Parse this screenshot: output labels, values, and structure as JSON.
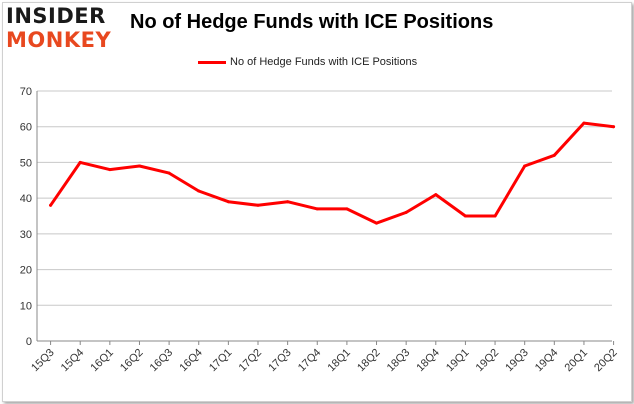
{
  "logo": {
    "line1": "INSIDER",
    "line2": "MONKEY"
  },
  "colors": {
    "series": "#ff0000",
    "grid": "#c8c8c8",
    "axis": "#888888",
    "logo_accent": "#e8481f"
  },
  "chart_data": {
    "type": "line",
    "title": "No of Hedge Funds with ICE Positions",
    "xlabel": "",
    "ylabel": "",
    "ylim": [
      0,
      70
    ],
    "yticks": [
      0,
      10,
      20,
      30,
      40,
      50,
      60,
      70
    ],
    "grid": true,
    "legend": "top-center",
    "categories": [
      "15Q3",
      "15Q4",
      "16Q1",
      "16Q2",
      "16Q3",
      "16Q4",
      "17Q1",
      "17Q2",
      "17Q3",
      "17Q4",
      "18Q1",
      "18Q2",
      "18Q3",
      "18Q4",
      "19Q1",
      "19Q2",
      "19Q3",
      "19Q4",
      "20Q1",
      "20Q2"
    ],
    "series": [
      {
        "name": "No of Hedge Funds with ICE Positions",
        "values": [
          38,
          50,
          48,
          49,
          47,
          42,
          39,
          38,
          39,
          37,
          37,
          33,
          36,
          41,
          35,
          35,
          49,
          52,
          61,
          60
        ]
      }
    ]
  }
}
